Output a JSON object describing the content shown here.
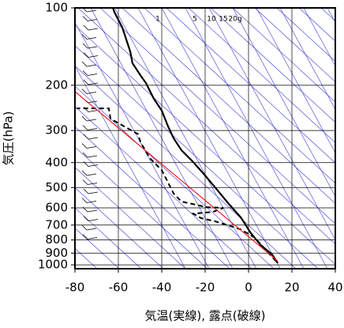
{
  "chart_data": {
    "type": "line",
    "xlabel": "気温(実線), 露点(破線)",
    "ylabel": "気圧(hPa)",
    "ylog": true,
    "grid": true,
    "xlim": [
      -80,
      40
    ],
    "xticks": [
      -80,
      -60,
      -40,
      -20,
      0,
      20,
      40
    ],
    "ylim": [
      100,
      1035
    ],
    "yticks": [
      100,
      200,
      300,
      400,
      500,
      600,
      700,
      800,
      900,
      1000
    ],
    "mixing_ratio_labels": [
      "1",
      "5",
      "10",
      "15",
      "20g"
    ],
    "series": [
      {
        "color": "#000000",
        "dashed": false,
        "x": [
          13.5,
          10.9,
          5.5,
          1.1,
          -3.6,
          -9.1,
          -14.5,
          -20,
          -25.5,
          -30.9,
          -34.5,
          -37.1,
          -40,
          -43.6,
          -47.3,
          -49.8,
          -53.5,
          -54.5,
          -58.2,
          -61.8,
          -62.5
        ],
        "values": [
          985,
          912,
          835,
          753,
          653,
          579,
          510,
          449,
          398,
          358,
          322,
          289,
          251,
          226,
          196,
          183,
          164,
          148,
          119,
          104,
          100
        ]
      },
      {
        "color": "#000000",
        "dashed": true,
        "x": [
          12.7,
          9.1,
          5.5,
          2.5,
          -3.6,
          -9.1,
          -15.6,
          -21.8,
          -25.5,
          -16.4,
          -11.6,
          -19.3,
          -30.9,
          -34.5,
          -40,
          -45.5,
          -49.8,
          -50.9,
          -63.6,
          -64.4,
          -79.3
        ],
        "values": [
          967,
          898,
          829,
          780,
          728,
          703,
          676,
          658,
          632,
          622,
          600,
          596,
          567,
          528,
          428,
          384,
          333,
          310,
          270,
          246,
          246
        ]
      },
      {
        "color": "#e8202a",
        "dashed": false,
        "x": [
          13.5,
          -79.6
        ],
        "values": [
          967,
          213
        ]
      }
    ]
  }
}
